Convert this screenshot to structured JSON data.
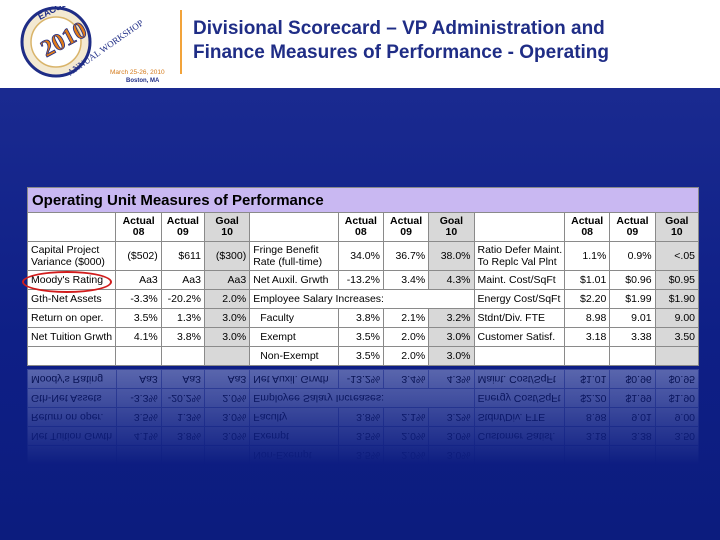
{
  "logo": {
    "top_text": "EACUBO",
    "year": "2010",
    "arc_text": "ANNUAL WORKSHOP",
    "dates": "March 25-26, 2010",
    "location": "Boston, MA"
  },
  "title": {
    "line1": "Divisional Scorecard – VP Administration and",
    "line2": "Finance Measures of Performance - Operating"
  },
  "table": {
    "caption": "Operating Unit Measures of Performance",
    "headers": {
      "actual08": [
        "Actual",
        "08"
      ],
      "actual09": [
        "Actual",
        "09"
      ],
      "goal10": [
        "Goal",
        "10"
      ]
    },
    "rows": [
      {
        "c1": "Capital Project Variance ($000)",
        "c1b": "",
        "a08": "($502)",
        "a09": "$611",
        "g10": "($300)",
        "m2": "Fringe Benefit",
        "m2b": "Rate (full-time)",
        "b08": "34.0%",
        "b09": "36.7%",
        "bg": "38.0%",
        "m3": "Ratio Defer Maint.",
        "m3b": "To Replc Val Plnt",
        "c08": "1.1%",
        "c09": "0.9%",
        "cg": "<.05"
      },
      {
        "c1": "Moody's Rating",
        "a08": "Aa3",
        "a09": "Aa3",
        "g10": "Aa3",
        "m2": "Net Auxil. Grwth",
        "b08": "-13.2%",
        "b09": "3.4%",
        "bg": "4.3%",
        "m3": "Maint. Cost/SqFt",
        "c08": "$1.01",
        "c09": "$0.96",
        "cg": "$0.95"
      },
      {
        "c1": "Gth-Net Assets",
        "a08": "-3.3%",
        "a09": "-20.2%",
        "g10": "2.0%",
        "m2": "Employee Salary Increases:",
        "b08": "",
        "b09": "",
        "bg": "",
        "m3": "Energy Cost/SqFt",
        "c08": "$2.20",
        "c09": "$1.99",
        "cg": "$1.90"
      },
      {
        "c1": "Return on oper.",
        "a08": "3.5%",
        "a09": "1.3%",
        "g10": "3.0%",
        "m2": "Faculty",
        "b08": "3.8%",
        "b09": "2.1%",
        "bg": "3.2%",
        "m3": "Stdnt/Div. FTE",
        "c08": "8.98",
        "c09": "9.01",
        "cg": "9.00"
      },
      {
        "c1": "Net Tuition Grwth",
        "a08": "4.1%",
        "a09": "3.8%",
        "g10": "3.0%",
        "m2": "Exempt",
        "b08": "3.5%",
        "b09": "2.0%",
        "bg": "3.0%",
        "m3": "Customer Satisf.",
        "c08": "3.18",
        "c09": "3.38",
        "cg": "3.50"
      },
      {
        "c1": "",
        "a08": "",
        "a09": "",
        "g10": "",
        "m2": "Non-Exempt",
        "b08": "3.5%",
        "b09": "2.0%",
        "bg": "3.0%",
        "m3": "",
        "c08": "",
        "c09": "",
        "cg": ""
      }
    ]
  }
}
